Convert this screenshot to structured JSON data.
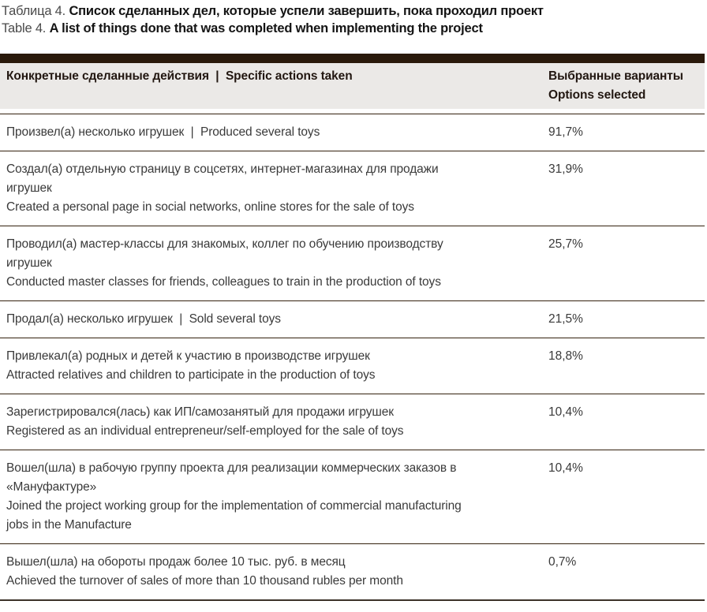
{
  "title": {
    "ru_prefix": "Таблица 4. ",
    "ru_main": "Список сделанных дел, которые успели завершить, пока проходил проект",
    "en_prefix": "Table 4. ",
    "en_main": "A list of things done that was completed when implementing the project"
  },
  "table": {
    "header": {
      "actions": "Конкретные сделанные действия  |  Specific actions taken",
      "options": "Выбранные варианты\nOptions selected"
    },
    "rows": [
      {
        "action": "Произвел(а) несколько игрушек  |  Produced several toys",
        "value": "91,7%"
      },
      {
        "action": "Создал(а) отдельную страницу в соцсетях, интернет-магазинах для продажи\nигрушек\nCreated a personal page in social networks, online stores for the sale of toys",
        "value": "31,9%"
      },
      {
        "action": "Проводил(а) мастер-классы для знакомых, коллег по обучению производству\nигрушек\nConducted master classes for friends, colleagues to train in the production of toys",
        "value": "25,7%"
      },
      {
        "action": "Продал(а) несколько игрушек  |  Sold several toys",
        "value": "21,5%"
      },
      {
        "action": "Привлекал(а) родных и детей к участию в производстве игрушек\nAttracted relatives and children to participate in the production of toys",
        "value": "18,8%"
      },
      {
        "action": "Зарегистрировался(лась) как ИП/самозанятый для продажи игрушек\nRegistered as an individual entrepreneur/self-employed for the sale of toys",
        "value": "10,4%"
      },
      {
        "action": "Вошел(шла) в рабочую группу проекта для реализации коммерческих заказов в\n«Мануфактуре»\nJoined the project working group for the implementation of commercial manufacturing\njobs in the Manufacture",
        "value": "10,4%"
      },
      {
        "action": "Вышел(шла) на обороты продаж более 10 тыс. руб. в месяц\nAchieved the turnover of sales of more than 10 thousand rubles per month",
        "value": "0,7%"
      }
    ]
  },
  "colors": {
    "header_bar": "#2a1a0b",
    "header_bg": "#ebe9e7",
    "separator": "#34210e",
    "bottom_border": "#3b3128",
    "body_text": "#3a3a3a",
    "title_bold": "#141414"
  }
}
